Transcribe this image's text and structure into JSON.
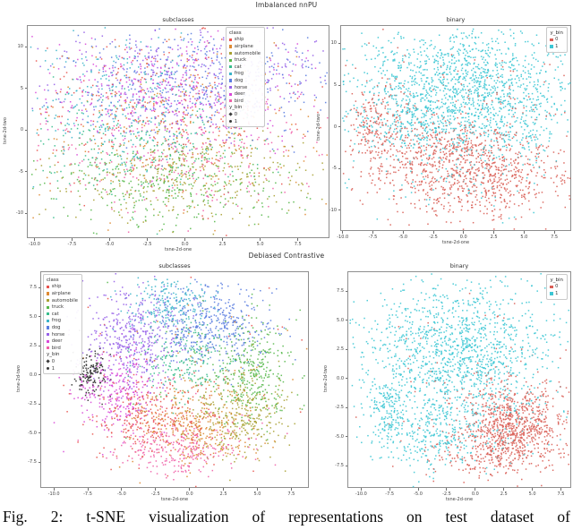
{
  "page": {
    "suptitle_top": "Imbalanced nnPU",
    "suptitle_bottom": "Debiased Contrastive",
    "caption": "Fig. 2: t-SNE visualization of representations on test dataset of"
  },
  "palette": {
    "class_colors": {
      "ship": "#e8534e",
      "airplane": "#de8a33",
      "automobile": "#a9a133",
      "truck": "#57b84b",
      "cat": "#38bd8d",
      "frog": "#3ab4c9",
      "dog": "#5a7de0",
      "horse": "#9661e8",
      "deer": "#d848d8",
      "bird": "#ef5fa7"
    },
    "binary_colors": {
      "0": "#d95f57",
      "1": "#3cc6d4"
    },
    "dark_marker": "#3a3a3a"
  },
  "chart_data": [
    {
      "id": "imbalanced-subclasses",
      "type": "scatter",
      "title": "subclasses",
      "xlabel": "tsne-2d-one",
      "ylabel": "tsne-2d-two",
      "xlim": [
        -10.5,
        9.6
      ],
      "ylim": [
        -13.0,
        12.6
      ],
      "xtick_labels": [
        "-10.0",
        "-7.5",
        "-5.0",
        "-2.5",
        "0.0",
        "2.5",
        "5.0",
        "7.5"
      ],
      "xtick_values": [
        -10,
        -7.5,
        -5,
        -2.5,
        0,
        2.5,
        5,
        7.5
      ],
      "ytick_labels": [
        "10",
        "5",
        "0",
        "-5",
        "-10"
      ],
      "ytick_values": [
        10,
        5,
        0,
        -5,
        -10
      ],
      "legend": {
        "sections": [
          {
            "title": "class",
            "items": [
              {
                "label": "ship",
                "color": "#e8534e",
                "marker": "square"
              },
              {
                "label": "airplane",
                "color": "#de8a33",
                "marker": "square"
              },
              {
                "label": "automobile",
                "color": "#a9a133",
                "marker": "square"
              },
              {
                "label": "truck",
                "color": "#57b84b",
                "marker": "square"
              },
              {
                "label": "cat",
                "color": "#38bd8d",
                "marker": "square"
              },
              {
                "label": "frog",
                "color": "#3ab4c9",
                "marker": "square"
              },
              {
                "label": "dog",
                "color": "#5a7de0",
                "marker": "square"
              },
              {
                "label": "horse",
                "color": "#9661e8",
                "marker": "square"
              },
              {
                "label": "deer",
                "color": "#d848d8",
                "marker": "square"
              },
              {
                "label": "bird",
                "color": "#ef5fa7",
                "marker": "square"
              }
            ]
          },
          {
            "title": "y_bin",
            "items": [
              {
                "label": "0",
                "color": "#3a3a3a",
                "marker": "cross"
              },
              {
                "label": "1",
                "color": "#3a3a3a",
                "marker": "dot"
              }
            ]
          }
        ]
      },
      "clusters": [
        {
          "label": "ship",
          "color": "#e8534e",
          "x": -1.5,
          "y": 2.5,
          "sx": 4.8,
          "sy": 4.8,
          "n": 300
        },
        {
          "label": "airplane",
          "color": "#de8a33",
          "x": -0.5,
          "y": 0.5,
          "sx": 5.2,
          "sy": 4.8,
          "n": 280
        },
        {
          "label": "automobile",
          "color": "#a9a133",
          "x": 0.5,
          "y": -5.5,
          "sx": 4.4,
          "sy": 2.8,
          "n": 320
        },
        {
          "label": "truck",
          "color": "#57b84b",
          "x": -1.0,
          "y": -6.5,
          "sx": 4.4,
          "sy": 2.6,
          "n": 320
        },
        {
          "label": "cat",
          "color": "#38bd8d",
          "x": -3.0,
          "y": -1.5,
          "sx": 4.0,
          "sy": 3.4,
          "n": 240
        },
        {
          "label": "frog",
          "color": "#3ab4c9",
          "x": -4.5,
          "y": 3.5,
          "sx": 3.0,
          "sy": 3.8,
          "n": 250
        },
        {
          "label": "dog",
          "color": "#5a7de0",
          "x": 1.0,
          "y": 6.0,
          "sx": 4.4,
          "sy": 3.2,
          "n": 390
        },
        {
          "label": "horse",
          "color": "#9661e8",
          "x": 0.0,
          "y": 6.5,
          "sx": 4.6,
          "sy": 3.2,
          "n": 390
        },
        {
          "label": "deer",
          "color": "#d848d8",
          "x": -0.5,
          "y": 4.5,
          "sx": 4.6,
          "sy": 3.6,
          "n": 340
        },
        {
          "label": "bird",
          "color": "#ef5fa7",
          "x": 0.0,
          "y": -2.5,
          "sx": 4.8,
          "sy": 3.4,
          "n": 270
        }
      ]
    },
    {
      "id": "imbalanced-binary",
      "type": "scatter",
      "title": "binary",
      "xlabel": "tsne-2d-one",
      "ylabel": "tsne-2d-two",
      "xlim": [
        -10.2,
        8.9
      ],
      "ylim": [
        -12.5,
        12.2
      ],
      "xtick_labels": [
        "-10.0",
        "-7.5",
        "-5.0",
        "-2.5",
        "0.0",
        "2.5",
        "5.0",
        "7.5"
      ],
      "xtick_values": [
        -10,
        -7.5,
        -5,
        -2.5,
        0,
        2.5,
        5,
        7.5
      ],
      "ytick_labels": [
        "10",
        "5",
        "0",
        "-5",
        "-10"
      ],
      "ytick_values": [
        10,
        5,
        0,
        -5,
        -10
      ],
      "legend": {
        "sections": [
          {
            "title": "y_bin",
            "items": [
              {
                "label": "0",
                "color": "#d95f57",
                "marker": "square"
              },
              {
                "label": "1",
                "color": "#3cc6d4",
                "marker": "square"
              }
            ]
          }
        ]
      },
      "clusters": [
        {
          "label": "1",
          "color": "#3cc6d4",
          "x": 0.0,
          "y": 5.5,
          "sx": 4.8,
          "sy": 3.4,
          "n": 1200
        },
        {
          "label": "1",
          "color": "#3cc6d4",
          "x": -4.0,
          "y": 1.0,
          "sx": 2.6,
          "sy": 2.6,
          "n": 280
        },
        {
          "label": "1",
          "color": "#3cc6d4",
          "x": 3.0,
          "y": 0.0,
          "sx": 3.0,
          "sy": 2.0,
          "n": 230
        },
        {
          "label": "1",
          "color": "#3cc6d4",
          "x": 0.0,
          "y": -6.0,
          "sx": 4.0,
          "sy": 2.4,
          "n": 80
        },
        {
          "label": "0",
          "color": "#d95f57",
          "x": 0.5,
          "y": -6.0,
          "sx": 4.2,
          "sy": 2.8,
          "n": 750
        },
        {
          "label": "0",
          "color": "#d95f57",
          "x": -2.0,
          "y": -2.5,
          "sx": 3.8,
          "sy": 2.0,
          "n": 330
        },
        {
          "label": "0",
          "color": "#d95f57",
          "x": -7.6,
          "y": 0.8,
          "sx": 1.2,
          "sy": 2.2,
          "n": 150
        },
        {
          "label": "0",
          "color": "#d95f57",
          "x": 0.0,
          "y": 4.0,
          "sx": 4.6,
          "sy": 3.0,
          "n": 80
        }
      ]
    },
    {
      "id": "debiased-subclasses",
      "type": "scatter",
      "title": "subclasses",
      "xlabel": "tsne-2d-one",
      "ylabel": "tsne-2d-two",
      "xlim": [
        -11.0,
        8.8
      ],
      "ylim": [
        -9.7,
        8.9
      ],
      "xtick_labels": [
        "-10.0",
        "-7.5",
        "-5.0",
        "-2.5",
        "0.0",
        "2.5",
        "5.0",
        "7.5"
      ],
      "xtick_values": [
        -10,
        -7.5,
        -5,
        -2.5,
        0,
        2.5,
        5,
        7.5
      ],
      "ytick_labels": [
        "7.5",
        "5.0",
        "2.5",
        "0.0",
        "-2.5",
        "-5.0",
        "-7.5"
      ],
      "ytick_values": [
        7.5,
        5,
        2.5,
        0,
        -2.5,
        -5,
        -7.5
      ],
      "legend": {
        "sections": [
          {
            "title": "class",
            "items": [
              {
                "label": "ship",
                "color": "#e8534e",
                "marker": "square"
              },
              {
                "label": "airplane",
                "color": "#de8a33",
                "marker": "square"
              },
              {
                "label": "automobile",
                "color": "#a9a133",
                "marker": "square"
              },
              {
                "label": "truck",
                "color": "#57b84b",
                "marker": "square"
              },
              {
                "label": "cat",
                "color": "#38bd8d",
                "marker": "square"
              },
              {
                "label": "frog",
                "color": "#3ab4c9",
                "marker": "square"
              },
              {
                "label": "dog",
                "color": "#5a7de0",
                "marker": "square"
              },
              {
                "label": "horse",
                "color": "#9661e8",
                "marker": "square"
              },
              {
                "label": "deer",
                "color": "#d848d8",
                "marker": "square"
              },
              {
                "label": "bird",
                "color": "#ef5fa7",
                "marker": "square"
              }
            ]
          },
          {
            "title": "y_bin",
            "items": [
              {
                "label": "0",
                "color": "#3a3a3a",
                "marker": "cross"
              },
              {
                "label": "1",
                "color": "#3a3a3a",
                "marker": "dot"
              }
            ]
          }
        ]
      },
      "clusters": [
        {
          "label": "horse",
          "color": "#9661e8",
          "x": -4.2,
          "y": 3.2,
          "sx": 1.9,
          "sy": 2.1,
          "n": 420
        },
        {
          "label": "dog",
          "color": "#5a7de0",
          "x": 1.4,
          "y": 4.3,
          "sx": 2.3,
          "sy": 1.7,
          "n": 440
        },
        {
          "label": "frog",
          "color": "#3ab4c9",
          "x": -1.6,
          "y": 6.2,
          "sx": 1.6,
          "sy": 1.0,
          "n": 190
        },
        {
          "label": "cat",
          "color": "#38bd8d",
          "x": -0.4,
          "y": 1.6,
          "sx": 1.8,
          "sy": 1.6,
          "n": 220
        },
        {
          "label": "truck",
          "color": "#57b84b",
          "x": 4.4,
          "y": 0.3,
          "sx": 1.6,
          "sy": 2.2,
          "n": 320
        },
        {
          "label": "automobile",
          "color": "#a9a133",
          "x": 3.5,
          "y": -3.3,
          "sx": 1.9,
          "sy": 1.7,
          "n": 320
        },
        {
          "label": "airplane",
          "color": "#de8a33",
          "x": 0.3,
          "y": -4.3,
          "sx": 2.2,
          "sy": 1.7,
          "n": 320
        },
        {
          "label": "ship",
          "color": "#e8534e",
          "x": -2.9,
          "y": -3.5,
          "sx": 2.3,
          "sy": 1.8,
          "n": 320
        },
        {
          "label": "bird",
          "color": "#ef5fa7",
          "x": -1.2,
          "y": -6.3,
          "sx": 2.3,
          "sy": 1.1,
          "n": 230
        },
        {
          "label": "deer",
          "color": "#d848d8",
          "x": -5.5,
          "y": -1.3,
          "sx": 1.5,
          "sy": 1.9,
          "n": 290
        },
        {
          "label": "y_bin-0",
          "color": "#2b2b2b",
          "x": -7.3,
          "y": 0.2,
          "sx": 0.6,
          "sy": 0.9,
          "n": 140
        },
        {
          "label": "ship",
          "color": "#e8534e",
          "x": 0.0,
          "y": 1.0,
          "sx": 5.0,
          "sy": 3.5,
          "n": 35
        },
        {
          "label": "truck",
          "color": "#57b84b",
          "x": -1.0,
          "y": 2.0,
          "sx": 4.5,
          "sy": 3.5,
          "n": 30
        },
        {
          "label": "airplane",
          "color": "#de8a33",
          "x": 2.0,
          "y": 1.5,
          "sx": 4.0,
          "sy": 3.0,
          "n": 30
        },
        {
          "label": "bird",
          "color": "#ef5fa7",
          "x": 2.0,
          "y": -5.5,
          "sx": 3.0,
          "sy": 1.5,
          "n": 35
        }
      ]
    },
    {
      "id": "debiased-binary",
      "type": "scatter",
      "title": "binary",
      "xlabel": "tsne-2d-one",
      "ylabel": "tsne-2d-two",
      "xlim": [
        -11.2,
        8.4
      ],
      "ylim": [
        -9.4,
        9.2
      ],
      "xtick_labels": [
        "-10.0",
        "-7.5",
        "-5.0",
        "-2.5",
        "0.0",
        "2.5",
        "5.0",
        "7.5"
      ],
      "xtick_values": [
        -10,
        -7.5,
        -5,
        -2.5,
        0,
        2.5,
        5,
        7.5
      ],
      "ytick_labels": [
        "7.5",
        "5.0",
        "2.5",
        "0.0",
        "-2.5",
        "-5.0",
        "-7.5"
      ],
      "ytick_values": [
        7.5,
        5,
        2.5,
        0,
        -2.5,
        -5,
        -7.5
      ],
      "legend": {
        "sections": [
          {
            "title": "y_bin",
            "items": [
              {
                "label": "0",
                "color": "#d95f57",
                "marker": "square"
              },
              {
                "label": "1",
                "color": "#3cc6d4",
                "marker": "square"
              }
            ]
          }
        ]
      },
      "clusters": [
        {
          "label": "1",
          "color": "#3cc6d4",
          "x": -1.5,
          "y": 2.5,
          "sx": 4.0,
          "sy": 2.9,
          "n": 1250
        },
        {
          "label": "1",
          "color": "#3cc6d4",
          "x": -3.8,
          "y": -4.6,
          "sx": 2.4,
          "sy": 1.6,
          "n": 330
        },
        {
          "label": "1",
          "color": "#3cc6d4",
          "x": -7.7,
          "y": -2.4,
          "sx": 0.9,
          "sy": 1.3,
          "n": 150
        },
        {
          "label": "1",
          "color": "#3cc6d4",
          "x": 2.5,
          "y": -2.5,
          "sx": 2.5,
          "sy": 1.8,
          "n": 70
        },
        {
          "label": "0",
          "color": "#d95f57",
          "x": 3.3,
          "y": -4.0,
          "sx": 2.3,
          "sy": 2.0,
          "n": 800
        },
        {
          "label": "0",
          "color": "#d95f57",
          "x": 0.8,
          "y": -6.2,
          "sx": 2.8,
          "sy": 1.1,
          "n": 200
        },
        {
          "label": "0",
          "color": "#d95f57",
          "x": -0.5,
          "y": 1.5,
          "sx": 4.0,
          "sy": 2.8,
          "n": 45
        }
      ]
    }
  ]
}
